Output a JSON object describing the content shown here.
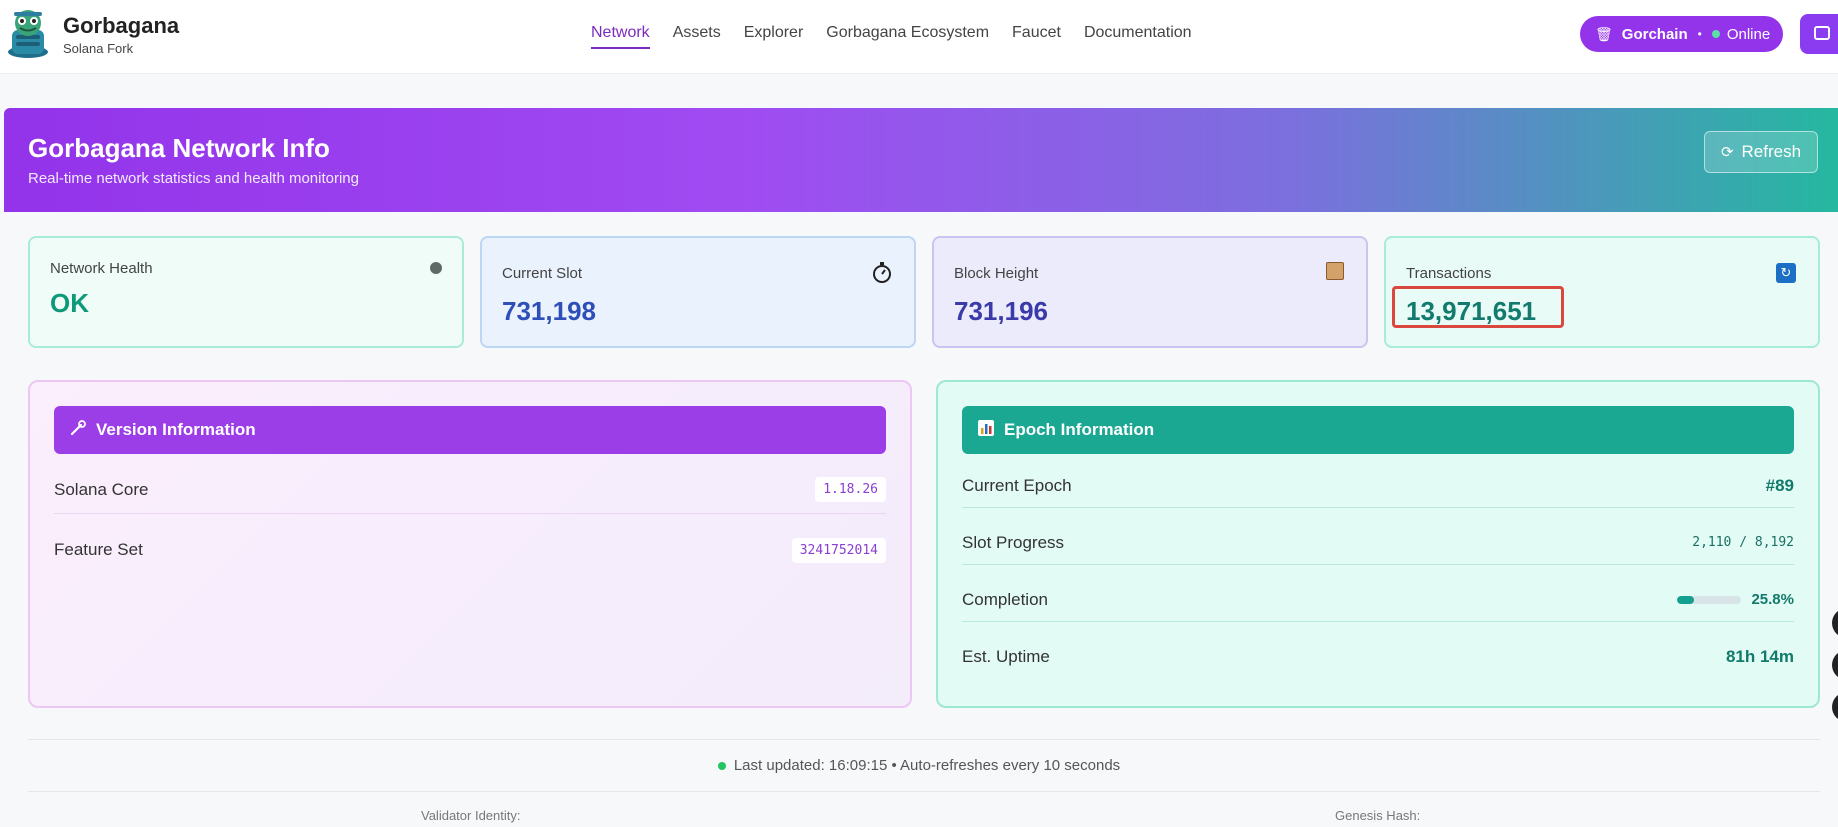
{
  "brand": {
    "title": "Gorbagana",
    "subtitle": "Solana Fork",
    "logo_icon": "gorbagana-mascot-icon"
  },
  "nav": {
    "items": [
      {
        "label": "Network",
        "active": true
      },
      {
        "label": "Assets",
        "active": false
      },
      {
        "label": "Explorer",
        "active": false
      },
      {
        "label": "Gorbagana Ecosystem",
        "active": false
      },
      {
        "label": "Faucet",
        "active": false
      },
      {
        "label": "Documentation",
        "active": false
      }
    ]
  },
  "status_pill": {
    "icon": "trash-bin-icon",
    "chain": "Gorchain",
    "separator": "•",
    "state": "Online",
    "accent": "#9333ea"
  },
  "hero": {
    "title": "Gorbagana Network Info",
    "subtitle": "Real-time network statistics and health monitoring",
    "refresh_icon": "refresh-icon",
    "refresh_label": "Refresh"
  },
  "stats": [
    {
      "label": "Network Health",
      "value": "OK",
      "icon": "status-dot-icon"
    },
    {
      "label": "Current Slot",
      "value": "731,198",
      "icon": "stopwatch-icon"
    },
    {
      "label": "Block Height",
      "value": "731,196",
      "icon": "package-icon"
    },
    {
      "label": "Transactions",
      "value": "13,971,651",
      "icon": "cycle-arrows-icon",
      "icon_glyph": "🔄"
    }
  ],
  "version_panel": {
    "title": "Version Information",
    "icon": "wrench-icon",
    "rows": [
      {
        "key": "Solana Core",
        "value": "1.18.26"
      },
      {
        "key": "Feature Set",
        "value": "3241752014"
      }
    ]
  },
  "epoch_panel": {
    "title": "Epoch Information",
    "icon": "bar-chart-icon",
    "rows": {
      "current_epoch": {
        "key": "Current Epoch",
        "value": "#89"
      },
      "slot_progress": {
        "key": "Slot Progress",
        "value": "2,110 / 8,192"
      },
      "completion": {
        "key": "Completion",
        "value": "25.8%",
        "fraction": 0.258
      },
      "uptime": {
        "key": "Est. Uptime",
        "value": "81h 14m"
      }
    }
  },
  "footer": {
    "status_text": "Last updated: 16:09:15 • Auto-refreshes every 10 seconds",
    "validator_label": "Validator Identity:",
    "genesis_label": "Genesis Hash:"
  }
}
